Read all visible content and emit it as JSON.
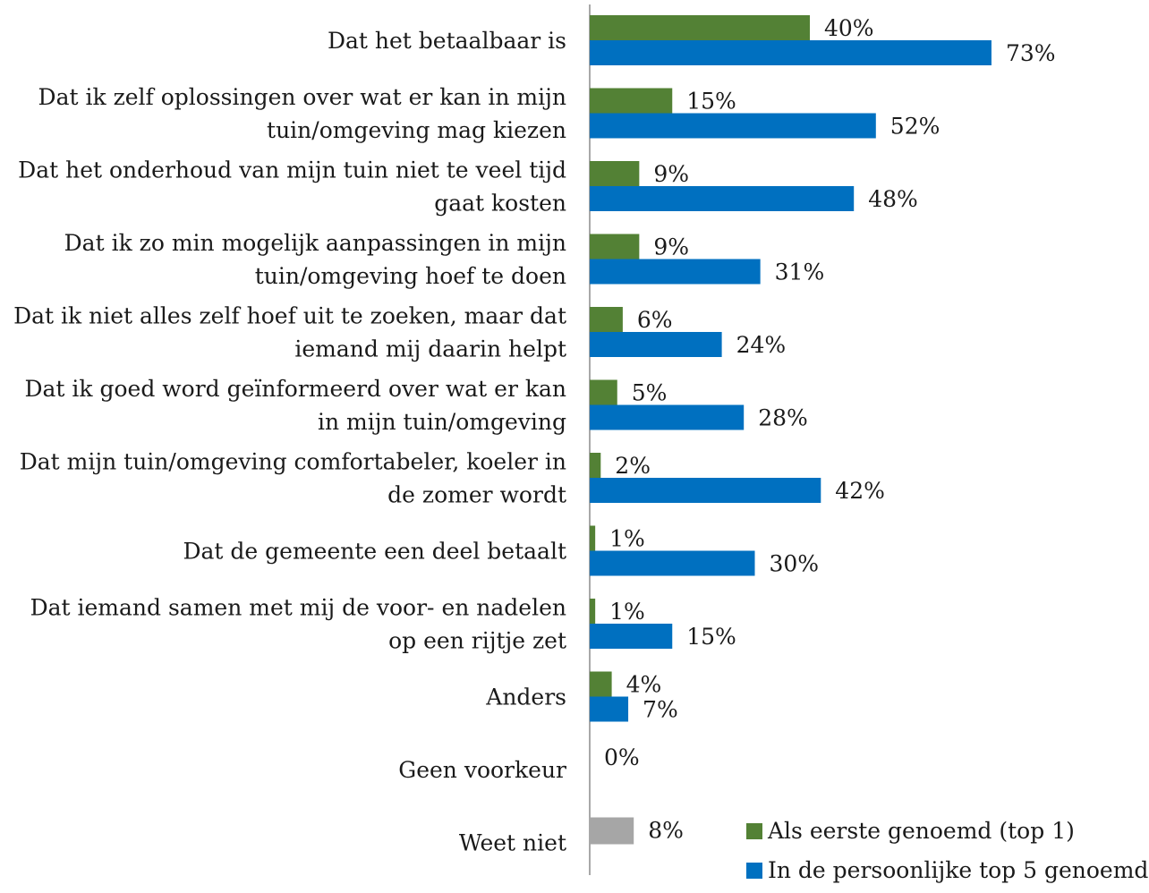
{
  "chart_data": {
    "type": "bar",
    "orientation": "horizontal",
    "categories": [
      [
        "Dat het betaalbaar is"
      ],
      [
        "Dat ik zelf oplossingen over wat er kan in mijn",
        "tuin/omgeving mag kiezen"
      ],
      [
        "Dat het onderhoud van mijn tuin niet te veel tijd",
        "gaat kosten"
      ],
      [
        "Dat ik zo min mogelijk aanpassingen in mijn",
        "tuin/omgeving hoef te doen"
      ],
      [
        "Dat ik niet alles zelf hoef uit te zoeken, maar dat",
        "iemand mij daarin helpt"
      ],
      [
        "Dat ik goed word geïnformeerd over wat er kan",
        "in mijn tuin/omgeving"
      ],
      [
        "Dat mijn tuin/omgeving comfortabeler, koeler in",
        "de zomer wordt"
      ],
      [
        "Dat de gemeente een deel betaalt"
      ],
      [
        "Dat iemand samen met mij de voor- en nadelen",
        "op een rijtje zet"
      ],
      [
        "Anders"
      ],
      [
        "Geen voorkeur"
      ],
      [
        "Weet niet"
      ]
    ],
    "series": [
      {
        "name": "Als eerste genoemd (top 1)",
        "color": "#538135",
        "values": [
          40,
          15,
          9,
          9,
          6,
          5,
          2,
          1,
          1,
          4,
          null,
          null
        ],
        "labels": [
          "40%",
          "15%",
          "9%",
          "9%",
          "6%",
          "5%",
          "2%",
          "1%",
          "1%",
          "4%",
          null,
          null
        ]
      },
      {
        "name": "In de persoonlijke top 5 genoemd",
        "color": "#0070C0",
        "values": [
          73,
          52,
          48,
          31,
          24,
          28,
          42,
          30,
          15,
          7,
          null,
          null
        ],
        "labels": [
          "73%",
          "52%",
          "48%",
          "31%",
          "24%",
          "28%",
          "42%",
          "30%",
          "15%",
          "7%",
          null,
          null
        ]
      }
    ],
    "single_bars": [
      {
        "category_index": 10,
        "value": 0,
        "label": "0%",
        "color": "#A6A6A6"
      },
      {
        "category_index": 11,
        "value": 8,
        "label": "8%",
        "color": "#A6A6A6"
      }
    ],
    "xlim": [
      0,
      100
    ],
    "grid": false,
    "legend_position": "bottom-right"
  }
}
